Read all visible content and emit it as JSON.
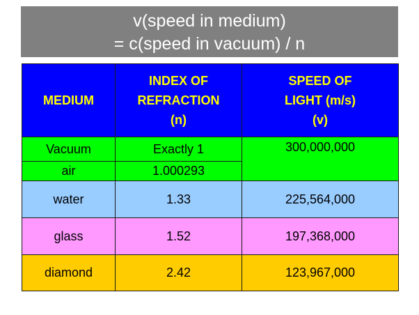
{
  "title": {
    "line1": "v(speed in medium)",
    "line2": "= c(speed in vacuum) / n"
  },
  "table": {
    "headers": {
      "medium": "MEDIUM",
      "index_line1": "INDEX OF",
      "index_line2": "REFRACTION",
      "index_line3": "(n)",
      "speed_line1": "SPEED OF",
      "speed_line2": "LIGHT (m/s)",
      "speed_line3": "(v)"
    },
    "rows": [
      {
        "medium": "Vacuum",
        "index": "Exactly 1",
        "speed": "300,000,000"
      },
      {
        "medium": "air",
        "index": "1.000293",
        "speed": ""
      },
      {
        "medium": "water",
        "index": "1.33",
        "speed": "225,564,000"
      },
      {
        "medium": "glass",
        "index": "1.52",
        "speed": "197,368,000"
      },
      {
        "medium": "diamond",
        "index": "2.42",
        "speed": "123,967,000"
      }
    ]
  },
  "colors": {
    "title_banner": "#808080",
    "header": "#0000ff",
    "header_text": "#ffff00",
    "vacuum_air": "#00ff00",
    "water": "#99ccff",
    "glass": "#ff99ff",
    "diamond": "#ffcc00"
  }
}
